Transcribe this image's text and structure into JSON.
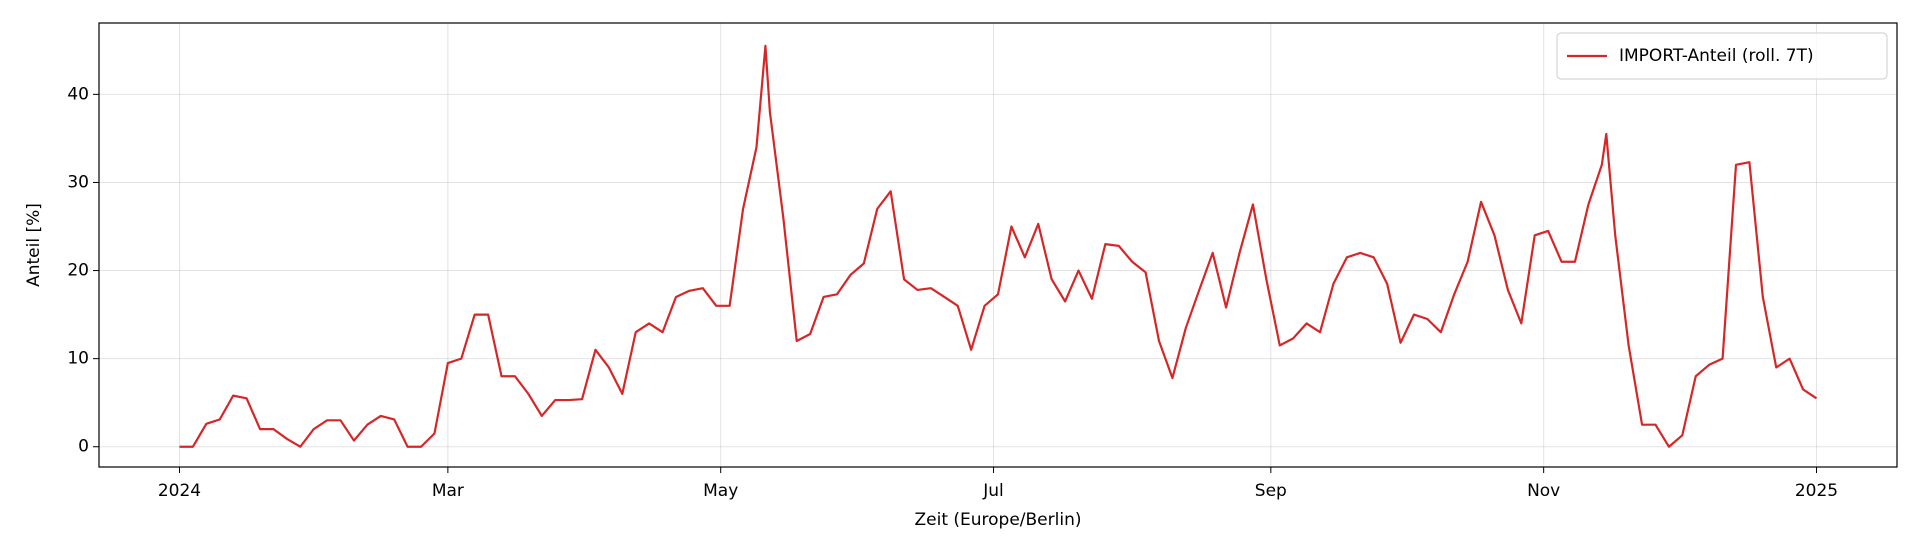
{
  "chart_data": {
    "type": "line",
    "x_label": "Zeit (Europe/Berlin)",
    "y_label": "Anteil [%]",
    "x": [
      "2024-01-01",
      "2024-01-04",
      "2024-01-07",
      "2024-01-10",
      "2024-01-13",
      "2024-01-16",
      "2024-01-19",
      "2024-01-22",
      "2024-01-25",
      "2024-01-28",
      "2024-01-31",
      "2024-02-03",
      "2024-02-06",
      "2024-02-09",
      "2024-02-12",
      "2024-02-15",
      "2024-02-18",
      "2024-02-21",
      "2024-02-24",
      "2024-02-27",
      "2024-03-01",
      "2024-03-04",
      "2024-03-07",
      "2024-03-10",
      "2024-03-13",
      "2024-03-16",
      "2024-03-19",
      "2024-03-22",
      "2024-03-25",
      "2024-03-28",
      "2024-03-31",
      "2024-04-03",
      "2024-04-06",
      "2024-04-09",
      "2024-04-12",
      "2024-04-15",
      "2024-04-18",
      "2024-04-21",
      "2024-04-24",
      "2024-04-27",
      "2024-04-30",
      "2024-05-03",
      "2024-05-06",
      "2024-05-09",
      "2024-05-11",
      "2024-05-12",
      "2024-05-15",
      "2024-05-18",
      "2024-05-21",
      "2024-05-24",
      "2024-05-27",
      "2024-05-30",
      "2024-06-02",
      "2024-06-05",
      "2024-06-08",
      "2024-06-11",
      "2024-06-14",
      "2024-06-17",
      "2024-06-20",
      "2024-06-23",
      "2024-06-26",
      "2024-06-29",
      "2024-07-02",
      "2024-07-05",
      "2024-07-08",
      "2024-07-11",
      "2024-07-14",
      "2024-07-17",
      "2024-07-20",
      "2024-07-23",
      "2024-07-26",
      "2024-07-29",
      "2024-08-01",
      "2024-08-04",
      "2024-08-07",
      "2024-08-10",
      "2024-08-13",
      "2024-08-16",
      "2024-08-19",
      "2024-08-22",
      "2024-08-25",
      "2024-08-28",
      "2024-08-31",
      "2024-09-03",
      "2024-09-06",
      "2024-09-09",
      "2024-09-12",
      "2024-09-15",
      "2024-09-18",
      "2024-09-21",
      "2024-09-24",
      "2024-09-27",
      "2024-09-30",
      "2024-10-03",
      "2024-10-06",
      "2024-10-09",
      "2024-10-12",
      "2024-10-15",
      "2024-10-18",
      "2024-10-21",
      "2024-10-24",
      "2024-10-27",
      "2024-10-30",
      "2024-11-02",
      "2024-11-05",
      "2024-11-08",
      "2024-11-11",
      "2024-11-14",
      "2024-11-15",
      "2024-11-17",
      "2024-11-20",
      "2024-11-23",
      "2024-11-26",
      "2024-11-29",
      "2024-12-02",
      "2024-12-05",
      "2024-12-08",
      "2024-12-11",
      "2024-12-14",
      "2024-12-17",
      "2024-12-20",
      "2024-12-23",
      "2024-12-26",
      "2024-12-29",
      "2025-01-01"
    ],
    "series": [
      {
        "name": "IMPORT-Anteil (roll. 7T)",
        "color": "#d62728",
        "values": [
          0,
          0,
          2.6,
          3.1,
          5.8,
          5.5,
          2,
          2,
          0.9,
          0,
          2,
          3,
          3,
          0.7,
          2.5,
          3.5,
          3.1,
          0,
          0,
          1.5,
          9.5,
          10,
          15,
          15,
          8,
          8,
          6,
          3.5,
          5.3,
          5.3,
          5.4,
          11,
          9,
          6,
          13,
          14,
          13,
          17,
          17.7,
          18,
          16,
          16,
          27,
          34,
          45.5,
          38,
          26,
          12,
          12.8,
          17,
          17.3,
          19.5,
          20.8,
          27,
          29,
          19,
          17.8,
          18,
          17,
          16,
          11,
          16,
          17.3,
          25,
          21.5,
          25.3,
          19,
          16.5,
          20,
          16.8,
          23,
          22.8,
          21,
          19.8,
          12,
          7.8,
          13.5,
          17.8,
          22,
          15.8,
          22,
          27.5,
          19,
          11.5,
          12.3,
          14,
          13,
          18.5,
          21.5,
          22,
          21.5,
          18.5,
          11.8,
          15,
          14.5,
          13,
          17.3,
          21,
          27.8,
          24,
          17.8,
          14,
          24,
          24.5,
          21,
          21,
          27.5,
          32,
          35.5,
          24,
          11.5,
          2.5,
          2.5,
          0,
          1.3,
          8,
          9.3,
          10,
          32,
          32.3,
          17,
          9,
          10,
          6.5,
          5.5
        ]
      }
    ],
    "xlim": [
      "2023-12-14",
      "2025-01-19"
    ],
    "xticks": [
      {
        "value": "2024-01-01",
        "label": "2024"
      },
      {
        "value": "2024-03-01",
        "label": "Mar"
      },
      {
        "value": "2024-05-01",
        "label": "May"
      },
      {
        "value": "2024-07-01",
        "label": "Jul"
      },
      {
        "value": "2024-09-01",
        "label": "Sep"
      },
      {
        "value": "2024-11-01",
        "label": "Nov"
      },
      {
        "value": "2025-01-01",
        "label": "2025"
      }
    ],
    "ylim": [
      -2.3,
      48.1
    ],
    "yticks": [
      0,
      10,
      20,
      30,
      40
    ],
    "grid": true,
    "legend": "upper right"
  }
}
